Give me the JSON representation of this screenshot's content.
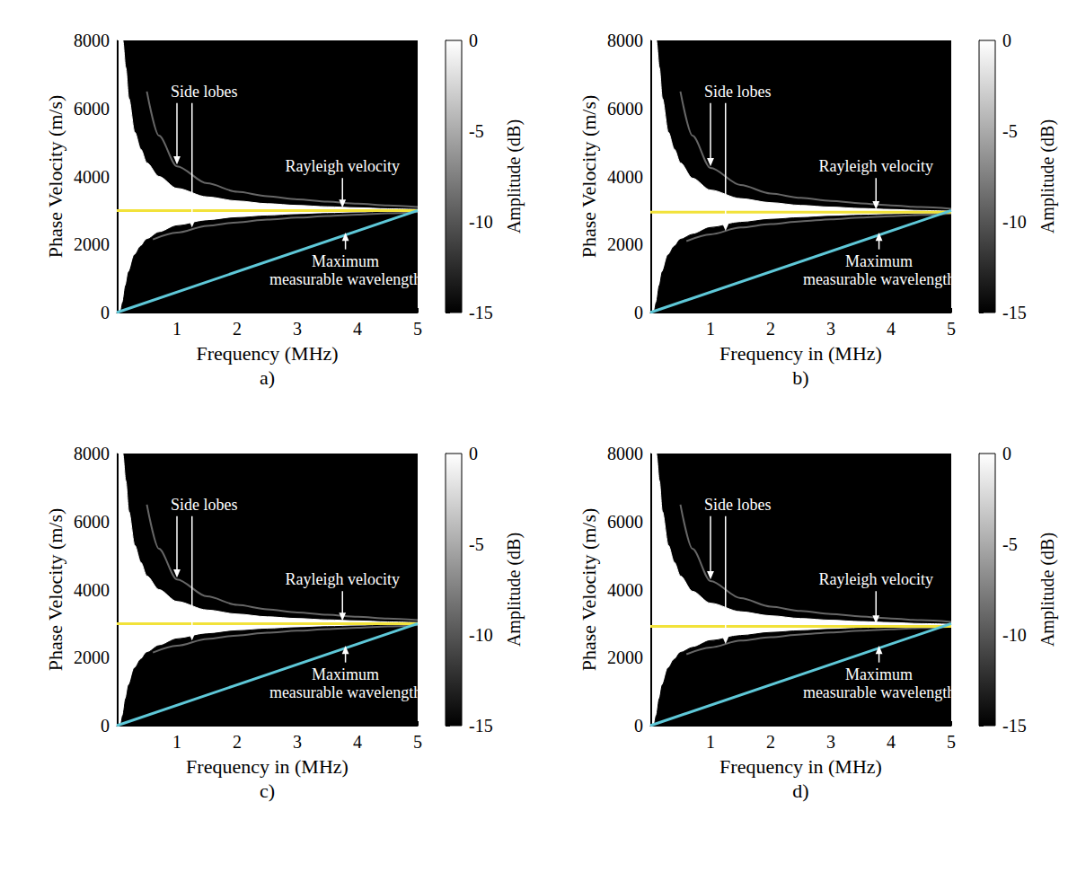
{
  "chart_data": [
    {
      "type": "line",
      "panel_label": "a)",
      "x_label": "Frequency (MHz)",
      "y_label": "Phase Velocity (m/s)",
      "xlim": [
        0,
        5
      ],
      "xticks": [
        1,
        2,
        3,
        4,
        5
      ],
      "ylim": [
        0,
        8000
      ],
      "yticks": [
        0,
        2000,
        4000,
        6000,
        8000
      ],
      "grid": false,
      "colorbar": {
        "label": "Amplitude (dB)",
        "lim": [
          -15,
          0
        ],
        "ticks": [
          0,
          -5,
          -10,
          -15
        ]
      },
      "series": [
        {
          "type": "area",
          "amplitude": 0,
          "x": [
            0.03,
            0.06,
            0.1,
            0.15,
            0.2,
            0.3,
            0.4,
            0.5,
            0.7,
            1,
            1.5,
            2,
            2.5,
            3,
            3.5,
            4,
            4.5,
            5
          ],
          "values": [
            8000,
            8000,
            8000,
            7200,
            6300,
            5300,
            4800,
            4400,
            4000,
            3650,
            3400,
            3280,
            3200,
            3150,
            3110,
            3080,
            3050,
            3030
          ]
        },
        {
          "type": "area",
          "amplitude": -15,
          "x": [
            0.03,
            0.06,
            0.1,
            0.15,
            0.2,
            0.3,
            0.4,
            0.5,
            0.7,
            1,
            1.5,
            2,
            2.5,
            3,
            3.5,
            4,
            4.5,
            5
          ],
          "values": [
            0,
            0,
            300,
            800,
            1200,
            1700,
            1950,
            2150,
            2350,
            2550,
            2700,
            2790,
            2840,
            2880,
            2910,
            2930,
            2950,
            2970
          ]
        },
        {
          "type": "line",
          "amplitude": -9,
          "x": [
            0.5,
            0.7,
            1,
            1.5,
            2,
            2.5,
            3,
            3.5,
            4,
            4.5,
            5
          ],
          "values": [
            6500,
            5200,
            4300,
            3800,
            3550,
            3420,
            3330,
            3260,
            3200,
            3150,
            3100
          ]
        },
        {
          "type": "line",
          "amplitude": -9,
          "x": [
            0.6,
            1,
            1.5,
            2,
            2.5,
            3,
            3.5,
            4,
            4.5,
            5
          ],
          "values": [
            2150,
            2350,
            2550,
            2650,
            2730,
            2790,
            2840,
            2880,
            2920,
            2960
          ]
        },
        {
          "type": "line",
          "color": "#f2e23a",
          "x": [
            0,
            5
          ],
          "values": [
            3000,
            3000
          ]
        },
        {
          "type": "line",
          "color": "#5ec8d8",
          "x": [
            0,
            5
          ],
          "values": [
            0,
            3000
          ]
        }
      ],
      "annotations": [
        {
          "text": "Side lobes",
          "x": 1.45,
          "y": 6500,
          "arrows": [
            [
              1.0,
              4350
            ],
            [
              1.25,
              2500
            ]
          ]
        },
        {
          "text": "Rayleigh velocity",
          "x": 3.75,
          "y": 4300,
          "arrows": [
            [
              3.75,
              3080
            ]
          ]
        },
        {
          "text": "Maximum measurable wavelength",
          "x": 3.8,
          "y": 1250,
          "arrows": [
            [
              3.8,
              2350
            ]
          ]
        }
      ]
    },
    {
      "type": "line",
      "panel_label": "b)",
      "x_label": "Frequency in (MHz)",
      "y_label": "Phase Velocity (m/s)",
      "xlim": [
        0,
        5
      ],
      "xticks": [
        1,
        2,
        3,
        4,
        5
      ],
      "ylim": [
        0,
        8000
      ],
      "yticks": [
        0,
        2000,
        4000,
        6000,
        8000
      ],
      "grid": false,
      "colorbar": {
        "label": "Amplitude (dB)",
        "lim": [
          -15,
          0
        ],
        "ticks": [
          0,
          -5,
          -10,
          -15
        ]
      },
      "series": [
        {
          "type": "area",
          "amplitude": 0,
          "x": [
            0.03,
            0.06,
            0.1,
            0.15,
            0.2,
            0.3,
            0.4,
            0.5,
            0.7,
            1,
            1.5,
            2,
            2.5,
            3,
            3.5,
            4,
            4.5,
            5
          ],
          "values": [
            8000,
            8000,
            8000,
            7200,
            6300,
            5300,
            4800,
            4400,
            3950,
            3600,
            3350,
            3230,
            3150,
            3100,
            3060,
            3030,
            3000,
            2980
          ]
        },
        {
          "type": "area",
          "amplitude": -15,
          "x": [
            0.03,
            0.06,
            0.1,
            0.15,
            0.2,
            0.3,
            0.4,
            0.5,
            0.7,
            1,
            1.5,
            2,
            2.5,
            3,
            3.5,
            4,
            4.5,
            5
          ],
          "values": [
            0,
            0,
            300,
            800,
            1200,
            1700,
            1950,
            2150,
            2300,
            2500,
            2650,
            2740,
            2790,
            2830,
            2860,
            2880,
            2900,
            2920
          ]
        },
        {
          "type": "line",
          "amplitude": -9,
          "x": [
            0.5,
            0.7,
            1,
            1.5,
            2,
            2.5,
            3,
            3.5,
            4,
            4.5,
            5
          ],
          "values": [
            6500,
            5200,
            4250,
            3750,
            3500,
            3370,
            3280,
            3210,
            3150,
            3100,
            3050
          ]
        },
        {
          "type": "line",
          "amplitude": -9,
          "x": [
            0.6,
            1,
            1.5,
            2,
            2.5,
            3,
            3.5,
            4,
            4.5,
            5
          ],
          "values": [
            2100,
            2300,
            2500,
            2600,
            2680,
            2740,
            2790,
            2830,
            2870,
            2910
          ]
        },
        {
          "type": "line",
          "color": "#f2e23a",
          "x": [
            0,
            5
          ],
          "values": [
            2950,
            2950
          ]
        },
        {
          "type": "line",
          "color": "#5ec8d8",
          "x": [
            0,
            5
          ],
          "values": [
            0,
            3000
          ]
        }
      ],
      "annotations": [
        {
          "text": "Side lobes",
          "x": 1.45,
          "y": 6500,
          "arrows": [
            [
              1.0,
              4300
            ],
            [
              1.25,
              2400
            ]
          ]
        },
        {
          "text": "Rayleigh velocity",
          "x": 3.75,
          "y": 4300,
          "arrows": [
            [
              3.75,
              3030
            ]
          ]
        },
        {
          "text": "Maximum measurable wavelength",
          "x": 3.8,
          "y": 1250,
          "arrows": [
            [
              3.8,
              2350
            ]
          ]
        }
      ]
    },
    {
      "type": "line",
      "panel_label": "c)",
      "x_label": "Frequency in (MHz)",
      "y_label": "Phase Velocity (m/s)",
      "xlim": [
        0,
        5
      ],
      "xticks": [
        1,
        2,
        3,
        4,
        5
      ],
      "ylim": [
        0,
        8000
      ],
      "yticks": [
        0,
        2000,
        4000,
        6000,
        8000
      ],
      "grid": false,
      "colorbar": {
        "label": "Amplitude (dB)",
        "lim": [
          -15,
          0
        ],
        "ticks": [
          0,
          -5,
          -10,
          -15
        ]
      },
      "series": [
        {
          "type": "area",
          "amplitude": 0,
          "x": [
            0.03,
            0.06,
            0.1,
            0.15,
            0.2,
            0.3,
            0.4,
            0.5,
            0.7,
            1,
            1.5,
            2,
            2.5,
            3,
            3.5,
            4,
            4.5,
            5
          ],
          "values": [
            8000,
            8000,
            8000,
            7200,
            6300,
            5300,
            4800,
            4400,
            4000,
            3650,
            3400,
            3280,
            3200,
            3150,
            3110,
            3080,
            3050,
            3030
          ]
        },
        {
          "type": "area",
          "amplitude": -15,
          "x": [
            0.03,
            0.06,
            0.1,
            0.15,
            0.2,
            0.3,
            0.4,
            0.5,
            0.7,
            1,
            1.5,
            2,
            2.5,
            3,
            3.5,
            4,
            4.5,
            5
          ],
          "values": [
            0,
            0,
            300,
            800,
            1200,
            1700,
            1950,
            2150,
            2350,
            2550,
            2700,
            2790,
            2840,
            2880,
            2910,
            2930,
            2950,
            2970
          ]
        },
        {
          "type": "line",
          "amplitude": -9,
          "x": [
            0.5,
            0.7,
            1,
            1.5,
            2,
            2.5,
            3,
            3.5,
            4,
            4.5,
            5
          ],
          "values": [
            6500,
            5200,
            4300,
            3800,
            3550,
            3420,
            3330,
            3260,
            3200,
            3150,
            3100
          ]
        },
        {
          "type": "line",
          "amplitude": -9,
          "x": [
            0.6,
            1,
            1.5,
            2,
            2.5,
            3,
            3.5,
            4,
            4.5,
            5
          ],
          "values": [
            2150,
            2350,
            2550,
            2650,
            2730,
            2790,
            2840,
            2880,
            2920,
            2960
          ]
        },
        {
          "type": "line",
          "color": "#f2e23a",
          "x": [
            0,
            5
          ],
          "values": [
            3000,
            3000
          ]
        },
        {
          "type": "line",
          "color": "#5ec8d8",
          "x": [
            0,
            5
          ],
          "values": [
            0,
            3000
          ]
        }
      ],
      "annotations": [
        {
          "text": "Side lobes",
          "x": 1.45,
          "y": 6500,
          "arrows": [
            [
              1.0,
              4350
            ],
            [
              1.25,
              2500
            ]
          ]
        },
        {
          "text": "Rayleigh velocity",
          "x": 3.75,
          "y": 4300,
          "arrows": [
            [
              3.75,
              3080
            ]
          ]
        },
        {
          "text": "Maximum measurable wavelength",
          "x": 3.8,
          "y": 1250,
          "arrows": [
            [
              3.8,
              2350
            ]
          ]
        }
      ]
    },
    {
      "type": "line",
      "panel_label": "d)",
      "x_label": "Frequency in (MHz)",
      "y_label": "Phase Velocity (m/s)",
      "xlim": [
        0,
        5
      ],
      "xticks": [
        1,
        2,
        3,
        4,
        5
      ],
      "ylim": [
        0,
        8000
      ],
      "yticks": [
        0,
        2000,
        4000,
        6000,
        8000
      ],
      "grid": false,
      "colorbar": {
        "label": "Amplitude (dB)",
        "lim": [
          -15,
          0
        ],
        "ticks": [
          0,
          -5,
          -10,
          -15
        ]
      },
      "series": [
        {
          "type": "area",
          "amplitude": 0,
          "x": [
            0.03,
            0.06,
            0.1,
            0.15,
            0.2,
            0.3,
            0.4,
            0.5,
            0.7,
            1,
            1.5,
            2,
            2.5,
            3,
            3.5,
            4,
            4.5,
            5
          ],
          "values": [
            8000,
            8000,
            8000,
            7200,
            6300,
            5300,
            4800,
            4400,
            3950,
            3600,
            3350,
            3230,
            3150,
            3100,
            3060,
            3030,
            3000,
            2980
          ]
        },
        {
          "type": "area",
          "amplitude": -15,
          "x": [
            0.03,
            0.06,
            0.1,
            0.15,
            0.2,
            0.3,
            0.4,
            0.5,
            0.7,
            1,
            1.5,
            2,
            2.5,
            3,
            3.5,
            4,
            4.5,
            5
          ],
          "values": [
            0,
            0,
            300,
            800,
            1200,
            1700,
            1950,
            2150,
            2300,
            2500,
            2650,
            2740,
            2790,
            2830,
            2860,
            2880,
            2900,
            2920
          ]
        },
        {
          "type": "line",
          "amplitude": -9,
          "x": [
            0.5,
            0.7,
            1,
            1.5,
            2,
            2.5,
            3,
            3.5,
            4,
            4.5,
            5
          ],
          "values": [
            6500,
            5200,
            4250,
            3750,
            3500,
            3370,
            3280,
            3210,
            3150,
            3100,
            3050
          ]
        },
        {
          "type": "line",
          "amplitude": -9,
          "x": [
            0.6,
            1,
            1.5,
            2,
            2.5,
            3,
            3.5,
            4,
            4.5,
            5
          ],
          "values": [
            2100,
            2300,
            2500,
            2600,
            2680,
            2740,
            2790,
            2830,
            2870,
            2910
          ]
        },
        {
          "type": "line",
          "color": "#f2e23a",
          "x": [
            0,
            5
          ],
          "values": [
            2920,
            2920
          ]
        },
        {
          "type": "line",
          "color": "#5ec8d8",
          "x": [
            0,
            5
          ],
          "values": [
            0,
            3000
          ]
        }
      ],
      "annotations": [
        {
          "text": "Side lobes",
          "x": 1.45,
          "y": 6500,
          "arrows": [
            [
              1.0,
              4300
            ],
            [
              1.25,
              2400
            ]
          ]
        },
        {
          "text": "Rayleigh velocity",
          "x": 3.75,
          "y": 4300,
          "arrows": [
            [
              3.75,
              3000
            ]
          ]
        },
        {
          "text": "Maximum measurable wavelength",
          "x": 3.8,
          "y": 1250,
          "arrows": [
            [
              3.8,
              2350
            ]
          ]
        }
      ]
    }
  ]
}
